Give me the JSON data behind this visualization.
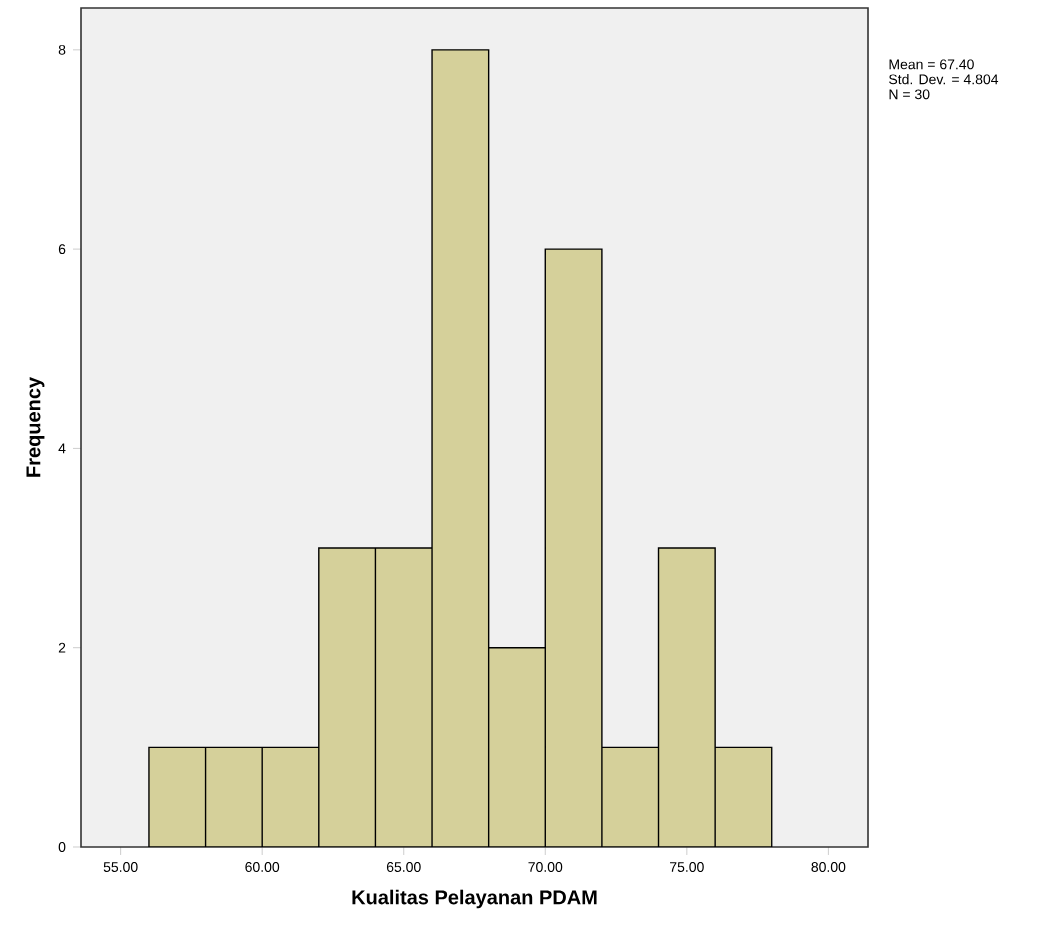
{
  "chart_data": {
    "type": "histogram",
    "xlabel": "Kualitas Pelayanan PDAM",
    "ylabel": "Frequency",
    "bins": [
      56,
      58,
      60,
      62,
      64,
      66,
      68,
      70,
      72,
      74,
      76,
      78
    ],
    "values": [
      1,
      1,
      1,
      3,
      3,
      8,
      2,
      6,
      1,
      3,
      1
    ],
    "color": "#d5d09a",
    "xlim": [
      53.6,
      81.4
    ],
    "ylim": [
      0,
      8.42
    ],
    "xticks": [
      {
        "value": 55,
        "label": "55.00"
      },
      {
        "value": 60,
        "label": "60.00"
      },
      {
        "value": 65,
        "label": "65.00"
      },
      {
        "value": 70,
        "label": "70.00"
      },
      {
        "value": 75,
        "label": "75.00"
      },
      {
        "value": 80,
        "label": "80.00"
      }
    ],
    "yticks": [
      0,
      2,
      4,
      6,
      8
    ],
    "grid": false,
    "annotations": [
      "Mean = 67.40",
      "Std. Dev. = 4.804",
      "N = 30"
    ]
  }
}
